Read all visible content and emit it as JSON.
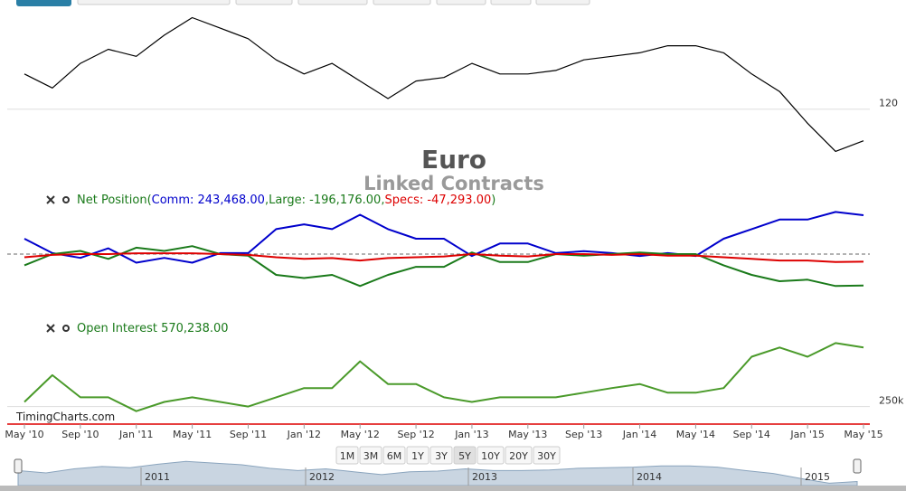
{
  "chart_data": [
    {
      "type": "line",
      "title": "Euro",
      "subtitle": "Linked Contracts",
      "series": [
        {
          "name": "Price",
          "color": "#000000",
          "values": [
            130,
            126,
            133,
            137,
            135,
            141,
            146,
            143,
            140,
            134,
            130,
            133,
            128,
            123,
            128,
            129,
            133,
            130,
            130,
            131,
            134,
            135,
            136,
            138,
            138,
            136,
            130,
            125,
            116,
            108,
            111
          ]
        }
      ],
      "ylim": [
        104,
        151
      ],
      "yticks": [
        120
      ],
      "grid": true
    },
    {
      "type": "line",
      "label": "Net Position(",
      "legend_separator": ",",
      "legend_close": ")",
      "series": [
        {
          "name": "Comm",
          "legend_label": "Comm: 243,468.00",
          "color": "#0000cc",
          "values": [
            96000,
            6000,
            -24000,
            36000,
            -54000,
            -24000,
            -54000,
            6000,
            6000,
            156000,
            186000,
            156000,
            246000,
            156000,
            96000,
            96000,
            -12000,
            66000,
            66000,
            6000,
            18000,
            6000,
            -12000,
            6000,
            -12000,
            96000,
            156000,
            216000,
            216000,
            264000,
            243468
          ]
        },
        {
          "name": "Large",
          "legend_label": "Large: -196,176.00",
          "color": "#1a7a1a",
          "values": [
            -70000,
            0,
            20000,
            -30000,
            40000,
            20000,
            50000,
            0,
            -10000,
            -130000,
            -150000,
            -130000,
            -200000,
            -130000,
            -80000,
            -80000,
            10000,
            -50000,
            -50000,
            0,
            -10000,
            0,
            10000,
            0,
            0,
            -70000,
            -130000,
            -170000,
            -160000,
            -200000,
            -196176
          ]
        },
        {
          "name": "Specs",
          "legend_label": "Specs: -47,293.00",
          "color": "#dd0000",
          "values": [
            -20000,
            -5000,
            0,
            0,
            5000,
            5000,
            5000,
            0,
            -5000,
            -20000,
            -30000,
            -25000,
            -40000,
            -25000,
            -20000,
            -15000,
            0,
            -10000,
            -15000,
            0,
            0,
            -5000,
            0,
            -10000,
            -10000,
            -20000,
            -30000,
            -40000,
            -40000,
            -50000,
            -47293
          ]
        }
      ],
      "ylim": [
        -300000,
        300000
      ],
      "yticks": [
        0
      ],
      "grid": true
    },
    {
      "type": "line",
      "legend_label": "Open Interest 570,238.00",
      "categories": [
        "May '10",
        null,
        "Sep '10",
        null,
        "Jan '11",
        null,
        "May '11",
        null,
        "Sep '11",
        null,
        "Jan '12",
        null,
        "May '12",
        null,
        "Sep '12",
        null,
        "Jan '13",
        null,
        "May '13",
        null,
        "Sep '13",
        null,
        "Jan '14",
        null,
        "May '14",
        null,
        "Sep '14",
        null,
        "Jan '15",
        null,
        "May '15"
      ],
      "series": [
        {
          "name": "Open Interest",
          "color": "#4a9a2a",
          "values": [
            275000,
            420000,
            300000,
            300000,
            225000,
            275000,
            300000,
            275000,
            250000,
            300000,
            350000,
            350000,
            495000,
            372000,
            372000,
            300000,
            275000,
            300000,
            300000,
            300000,
            325000,
            350000,
            372000,
            325000,
            325000,
            350000,
            520000,
            570000,
            520000,
            594000,
            570238
          ]
        }
      ],
      "ylim": [
        150000,
        640000
      ],
      "yticks": [
        {
          "value": 250000,
          "label": "250k"
        }
      ],
      "grid": true
    }
  ],
  "credit": "TimingCharts.com",
  "range_selector": {
    "buttons": [
      "1M",
      "3M",
      "6M",
      "1Y",
      "3Y",
      "5Y",
      "10Y",
      "20Y",
      "30Y"
    ],
    "selected": "5Y"
  },
  "navigator": {
    "labels": [
      "2011",
      "2012",
      "2013",
      "2014",
      "2015"
    ]
  }
}
